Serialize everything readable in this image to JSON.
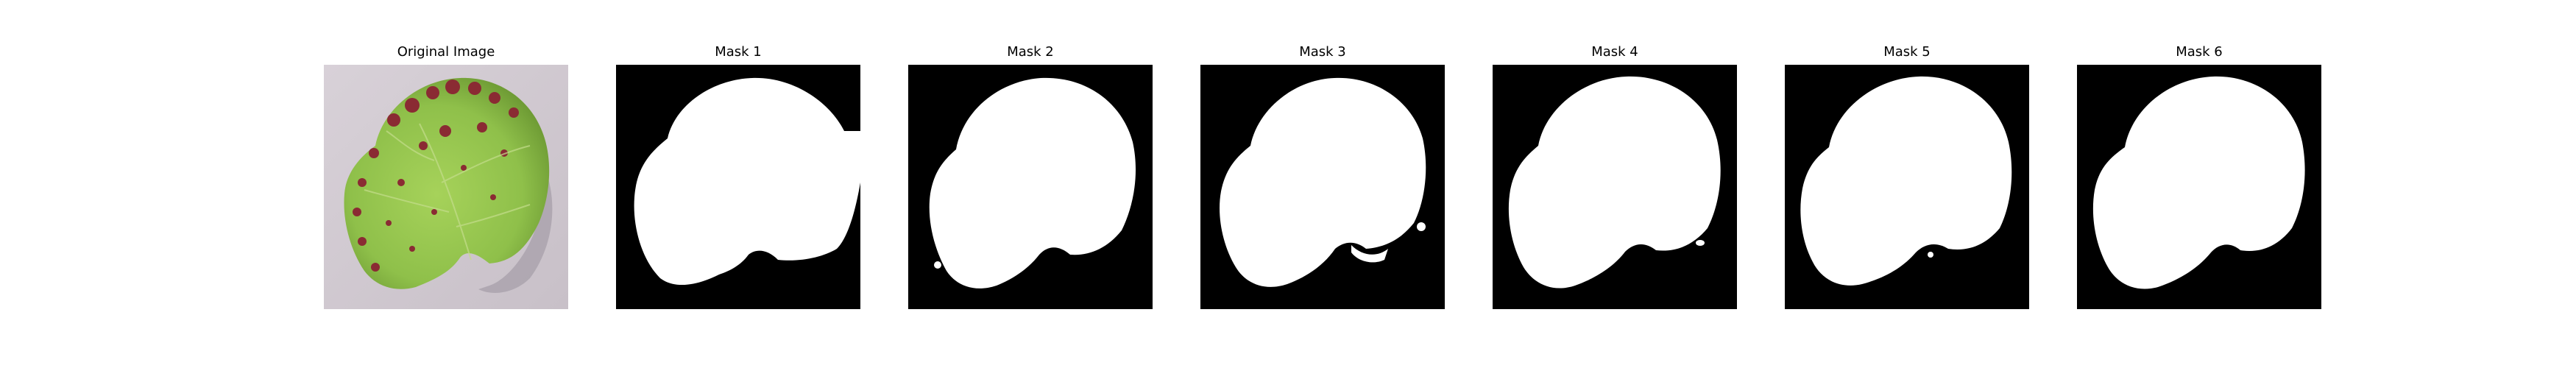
{
  "figure": {
    "panels": [
      {
        "title": "Original Image",
        "kind": "photo",
        "icon": "leaf-photo"
      },
      {
        "title": "Mask 1",
        "kind": "mask",
        "icon": "leaf-mask"
      },
      {
        "title": "Mask 2",
        "kind": "mask",
        "icon": "leaf-mask"
      },
      {
        "title": "Mask 3",
        "kind": "mask",
        "icon": "leaf-mask"
      },
      {
        "title": "Mask 4",
        "kind": "mask",
        "icon": "leaf-mask"
      },
      {
        "title": "Mask 5",
        "kind": "mask",
        "icon": "leaf-mask"
      },
      {
        "title": "Mask 6",
        "kind": "mask",
        "icon": "leaf-mask"
      }
    ],
    "colors": {
      "mask_background": "#000000",
      "mask_foreground": "#ffffff",
      "photo_background": "#d3ccd2",
      "leaf_green": "#8fc04a",
      "leaf_dark_green": "#6f9c35",
      "lesion": "#8a2b33",
      "shadow": "#a49ca6"
    }
  }
}
